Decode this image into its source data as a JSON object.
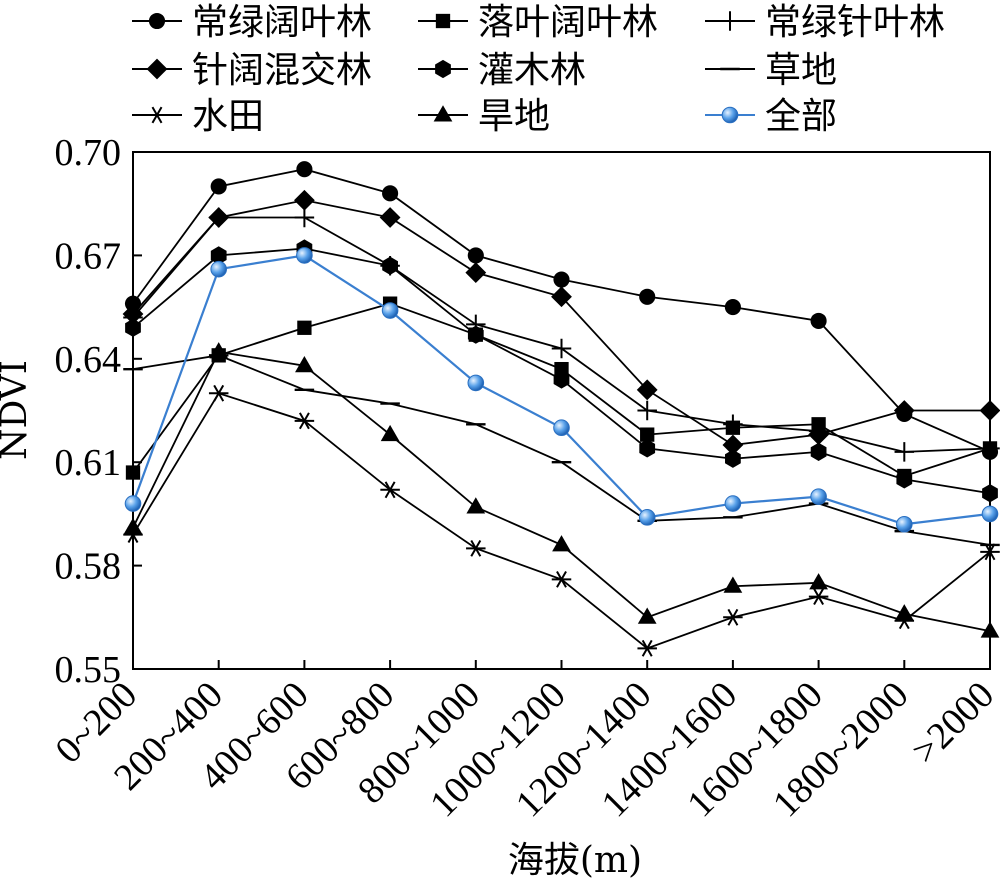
{
  "chart_data": {
    "type": "line",
    "title": "",
    "xlabel": "海拔(m)",
    "ylabel": "NDVI",
    "ylim": [
      0.55,
      0.7
    ],
    "yticks": [
      0.55,
      0.58,
      0.61,
      0.64,
      0.67,
      0.7
    ],
    "ytick_labels": [
      "0.55",
      "0.58",
      "0.61",
      "0.64",
      "0.67",
      "0.70"
    ],
    "grid": false,
    "legend_position": "top",
    "categories": [
      "0~200",
      "200~400",
      "400~600",
      "600~800",
      "800~1000",
      "1000~1200",
      "1200~1400",
      "1400~1600",
      "1600~1800",
      "1800~2000",
      ">2000"
    ],
    "series": [
      {
        "name": "常绿阔叶林",
        "marker": "circle",
        "color": "#000000",
        "values": [
          0.656,
          0.69,
          0.695,
          0.688,
          0.67,
          0.663,
          0.658,
          0.655,
          0.651,
          0.624,
          0.613
        ]
      },
      {
        "name": "落叶阔叶林",
        "marker": "square",
        "color": "#000000",
        "values": [
          0.607,
          0.641,
          0.649,
          0.656,
          0.647,
          0.637,
          0.618,
          0.62,
          0.621,
          0.606,
          0.614
        ]
      },
      {
        "name": "常绿针叶林",
        "marker": "plus",
        "color": "#000000",
        "values": [
          0.652,
          0.681,
          0.681,
          0.667,
          0.65,
          0.643,
          0.625,
          0.621,
          0.619,
          0.613,
          0.614
        ]
      },
      {
        "name": "针阔混交林",
        "marker": "diamond",
        "color": "#000000",
        "values": [
          0.653,
          0.681,
          0.686,
          0.681,
          0.665,
          0.658,
          0.631,
          0.615,
          0.618,
          0.625,
          0.625
        ]
      },
      {
        "name": "灌木林",
        "marker": "hexagon",
        "color": "#000000",
        "values": [
          0.649,
          0.67,
          0.672,
          0.667,
          0.647,
          0.634,
          0.614,
          0.611,
          0.613,
          0.605,
          0.601
        ]
      },
      {
        "name": "草地",
        "marker": "dash",
        "color": "#000000",
        "values": [
          0.637,
          0.641,
          0.631,
          0.627,
          0.621,
          0.61,
          0.593,
          0.594,
          0.598,
          0.59,
          0.586
        ]
      },
      {
        "name": "水田",
        "marker": "asterisk",
        "color": "#000000",
        "values": [
          0.589,
          0.63,
          0.622,
          0.602,
          0.585,
          0.576,
          0.556,
          0.565,
          0.571,
          0.564,
          0.584
        ]
      },
      {
        "name": "旱地",
        "marker": "triangle",
        "color": "#000000",
        "values": [
          0.591,
          0.642,
          0.638,
          0.618,
          0.597,
          0.586,
          0.565,
          0.574,
          0.575,
          0.566,
          0.561
        ]
      },
      {
        "name": "全部",
        "marker": "sphere",
        "color": "#3a7fd0",
        "values": [
          0.598,
          0.666,
          0.67,
          0.654,
          0.633,
          0.62,
          0.594,
          0.598,
          0.6,
          0.592,
          0.595
        ]
      }
    ]
  }
}
